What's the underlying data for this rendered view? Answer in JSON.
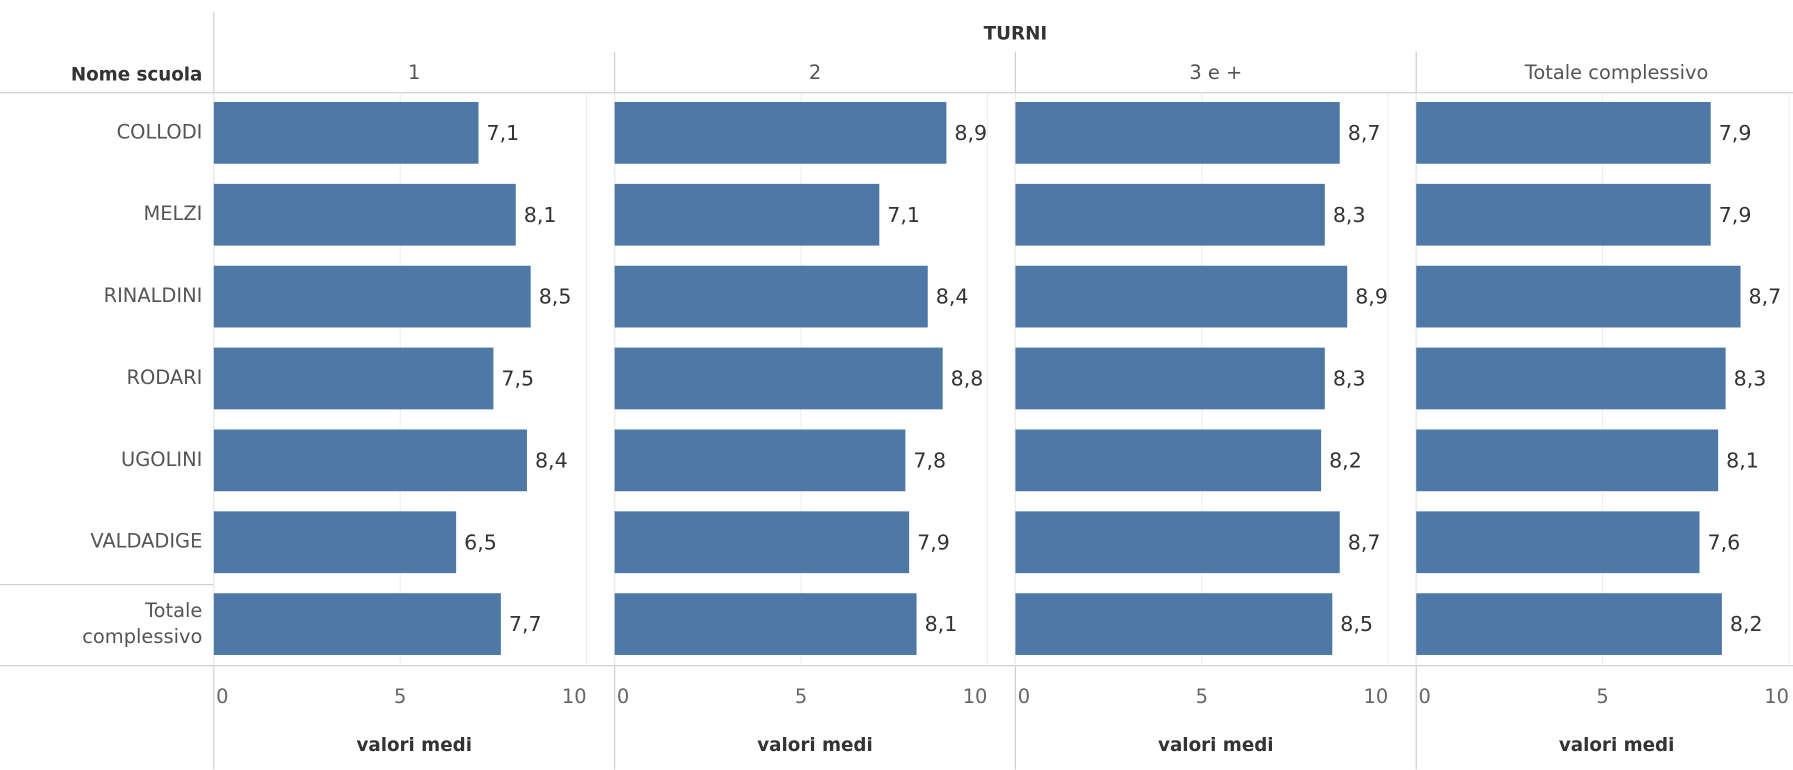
{
  "chart_data": {
    "type": "bar",
    "orientation": "horizontal",
    "facet_title": "TURNI",
    "category_label": "Nome scuola",
    "categories": [
      "COLLODI",
      "MELZI",
      "RINALDINI",
      "RODARI",
      "UGOLINI",
      "VALDADIGE",
      "Totale complessivo"
    ],
    "series": [
      {
        "name": "1",
        "color": "#4e79a7",
        "values": [
          7.1,
          8.1,
          8.5,
          7.5,
          8.4,
          6.5,
          7.7
        ],
        "value_labels": [
          "7,1",
          "8,1",
          "8,5",
          "7,5",
          "8,4",
          "6,5",
          "7,7"
        ]
      },
      {
        "name": "2",
        "color": "#4e79a7",
        "values": [
          8.9,
          7.1,
          8.4,
          8.8,
          7.8,
          7.9,
          8.1
        ],
        "value_labels": [
          "8,9",
          "7,1",
          "8,4",
          "8,8",
          "7,8",
          "7,9",
          "8,1"
        ]
      },
      {
        "name": "3 e +",
        "color": "#4e79a7",
        "values": [
          8.7,
          8.3,
          8.9,
          8.3,
          8.2,
          8.7,
          8.5
        ],
        "value_labels": [
          "8,7",
          "8,3",
          "8,9",
          "8,3",
          "8,2",
          "8,7",
          "8,5"
        ]
      },
      {
        "name": "Totale complessivo",
        "color": "#4e79a7",
        "values": [
          7.9,
          7.9,
          8.7,
          8.3,
          8.1,
          7.6,
          8.2
        ],
        "value_labels": [
          "7,9",
          "7,9",
          "8,7",
          "8,3",
          "8,1",
          "7,6",
          "8,2"
        ]
      }
    ],
    "xlim": [
      0,
      10
    ],
    "xticks": [
      0,
      5,
      10
    ],
    "xlabel": "valori medi",
    "grid": true
  }
}
